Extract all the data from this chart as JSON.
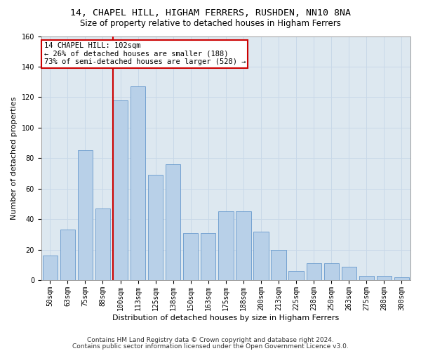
{
  "title": "14, CHAPEL HILL, HIGHAM FERRERS, RUSHDEN, NN10 8NA",
  "subtitle": "Size of property relative to detached houses in Higham Ferrers",
  "xlabel": "Distribution of detached houses by size in Higham Ferrers",
  "ylabel": "Number of detached properties",
  "bar_labels": [
    "50sqm",
    "63sqm",
    "75sqm",
    "88sqm",
    "100sqm",
    "113sqm",
    "125sqm",
    "138sqm",
    "150sqm",
    "163sqm",
    "175sqm",
    "188sqm",
    "200sqm",
    "213sqm",
    "225sqm",
    "238sqm",
    "250sqm",
    "263sqm",
    "275sqm",
    "288sqm",
    "300sqm"
  ],
  "bar_values": [
    16,
    33,
    85,
    47,
    118,
    127,
    69,
    76,
    31,
    31,
    45,
    45,
    32,
    20,
    6,
    11,
    11,
    9,
    3,
    3,
    2
  ],
  "bar_color": "#b8d0e8",
  "bar_edge_color": "#6699cc",
  "highlight_line_index": 4,
  "highlight_line_color": "#cc0000",
  "annotation_line1": "14 CHAPEL HILL: 102sqm",
  "annotation_line2": "← 26% of detached houses are smaller (188)",
  "annotation_line3": "73% of semi-detached houses are larger (528) →",
  "annotation_box_color": "#cc0000",
  "ylim": [
    0,
    160
  ],
  "yticks": [
    0,
    20,
    40,
    60,
    80,
    100,
    120,
    140,
    160
  ],
  "grid_color": "#c8d8e8",
  "bg_color": "#dde8f0",
  "footer_line1": "Contains HM Land Registry data © Crown copyright and database right 2024.",
  "footer_line2": "Contains public sector information licensed under the Open Government Licence v3.0.",
  "title_fontsize": 9.5,
  "subtitle_fontsize": 8.5,
  "xlabel_fontsize": 8,
  "ylabel_fontsize": 8,
  "tick_fontsize": 7,
  "annotation_fontsize": 7.5,
  "footer_fontsize": 6.5
}
